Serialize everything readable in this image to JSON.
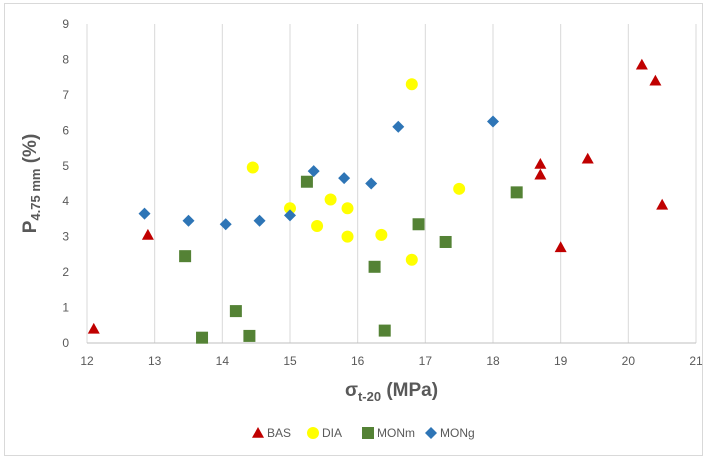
{
  "chart_data": {
    "type": "scatter",
    "title": "",
    "xlabel": {
      "main": "σ",
      "sub": "t-20",
      "rest": " (MPa)"
    },
    "ylabel": {
      "main": "P",
      "sub": "4.75 mm",
      "rest": " (%)"
    },
    "xlim": [
      12,
      21
    ],
    "ylim": [
      0,
      9
    ],
    "xticks": [
      "12",
      "13",
      "14",
      "15",
      "16",
      "17",
      "18",
      "19",
      "20",
      "21"
    ],
    "yticks": [
      "0",
      "1",
      "2",
      "3",
      "4",
      "5",
      "6",
      "7",
      "8",
      "9"
    ],
    "grid": "vertical",
    "legend_position": "bottom",
    "series": [
      {
        "name": "BAS",
        "marker": "triangle",
        "color": "#c00000",
        "points": [
          [
            12.1,
            0.4
          ],
          [
            12.9,
            3.05
          ],
          [
            18.7,
            5.05
          ],
          [
            18.7,
            4.75
          ],
          [
            19.0,
            2.7
          ],
          [
            19.4,
            5.2
          ],
          [
            20.2,
            7.85
          ],
          [
            20.4,
            7.4
          ],
          [
            20.5,
            3.9
          ]
        ]
      },
      {
        "name": "DIA",
        "marker": "circle",
        "color": "#ffff00",
        "points": [
          [
            14.45,
            4.95
          ],
          [
            15.0,
            3.8
          ],
          [
            15.4,
            3.3
          ],
          [
            15.6,
            4.05
          ],
          [
            15.85,
            3.8
          ],
          [
            15.85,
            3.0
          ],
          [
            16.35,
            3.05
          ],
          [
            16.8,
            7.3
          ],
          [
            16.8,
            2.35
          ],
          [
            17.5,
            4.35
          ]
        ]
      },
      {
        "name": "MONm",
        "marker": "square",
        "color": "#548235",
        "points": [
          [
            13.45,
            2.45
          ],
          [
            13.7,
            0.15
          ],
          [
            14.2,
            0.9
          ],
          [
            14.4,
            0.2
          ],
          [
            15.25,
            4.55
          ],
          [
            16.25,
            2.15
          ],
          [
            16.4,
            0.35
          ],
          [
            16.9,
            3.35
          ],
          [
            17.3,
            2.85
          ],
          [
            18.35,
            4.25
          ]
        ]
      },
      {
        "name": "MONg",
        "marker": "diamond",
        "color": "#2e75b6",
        "points": [
          [
            12.85,
            3.65
          ],
          [
            13.5,
            3.45
          ],
          [
            14.05,
            3.35
          ],
          [
            14.55,
            3.45
          ],
          [
            15.0,
            3.6
          ],
          [
            15.35,
            4.85
          ],
          [
            15.8,
            4.65
          ],
          [
            16.2,
            4.5
          ],
          [
            16.6,
            6.1
          ],
          [
            18.0,
            6.25
          ]
        ]
      }
    ]
  }
}
